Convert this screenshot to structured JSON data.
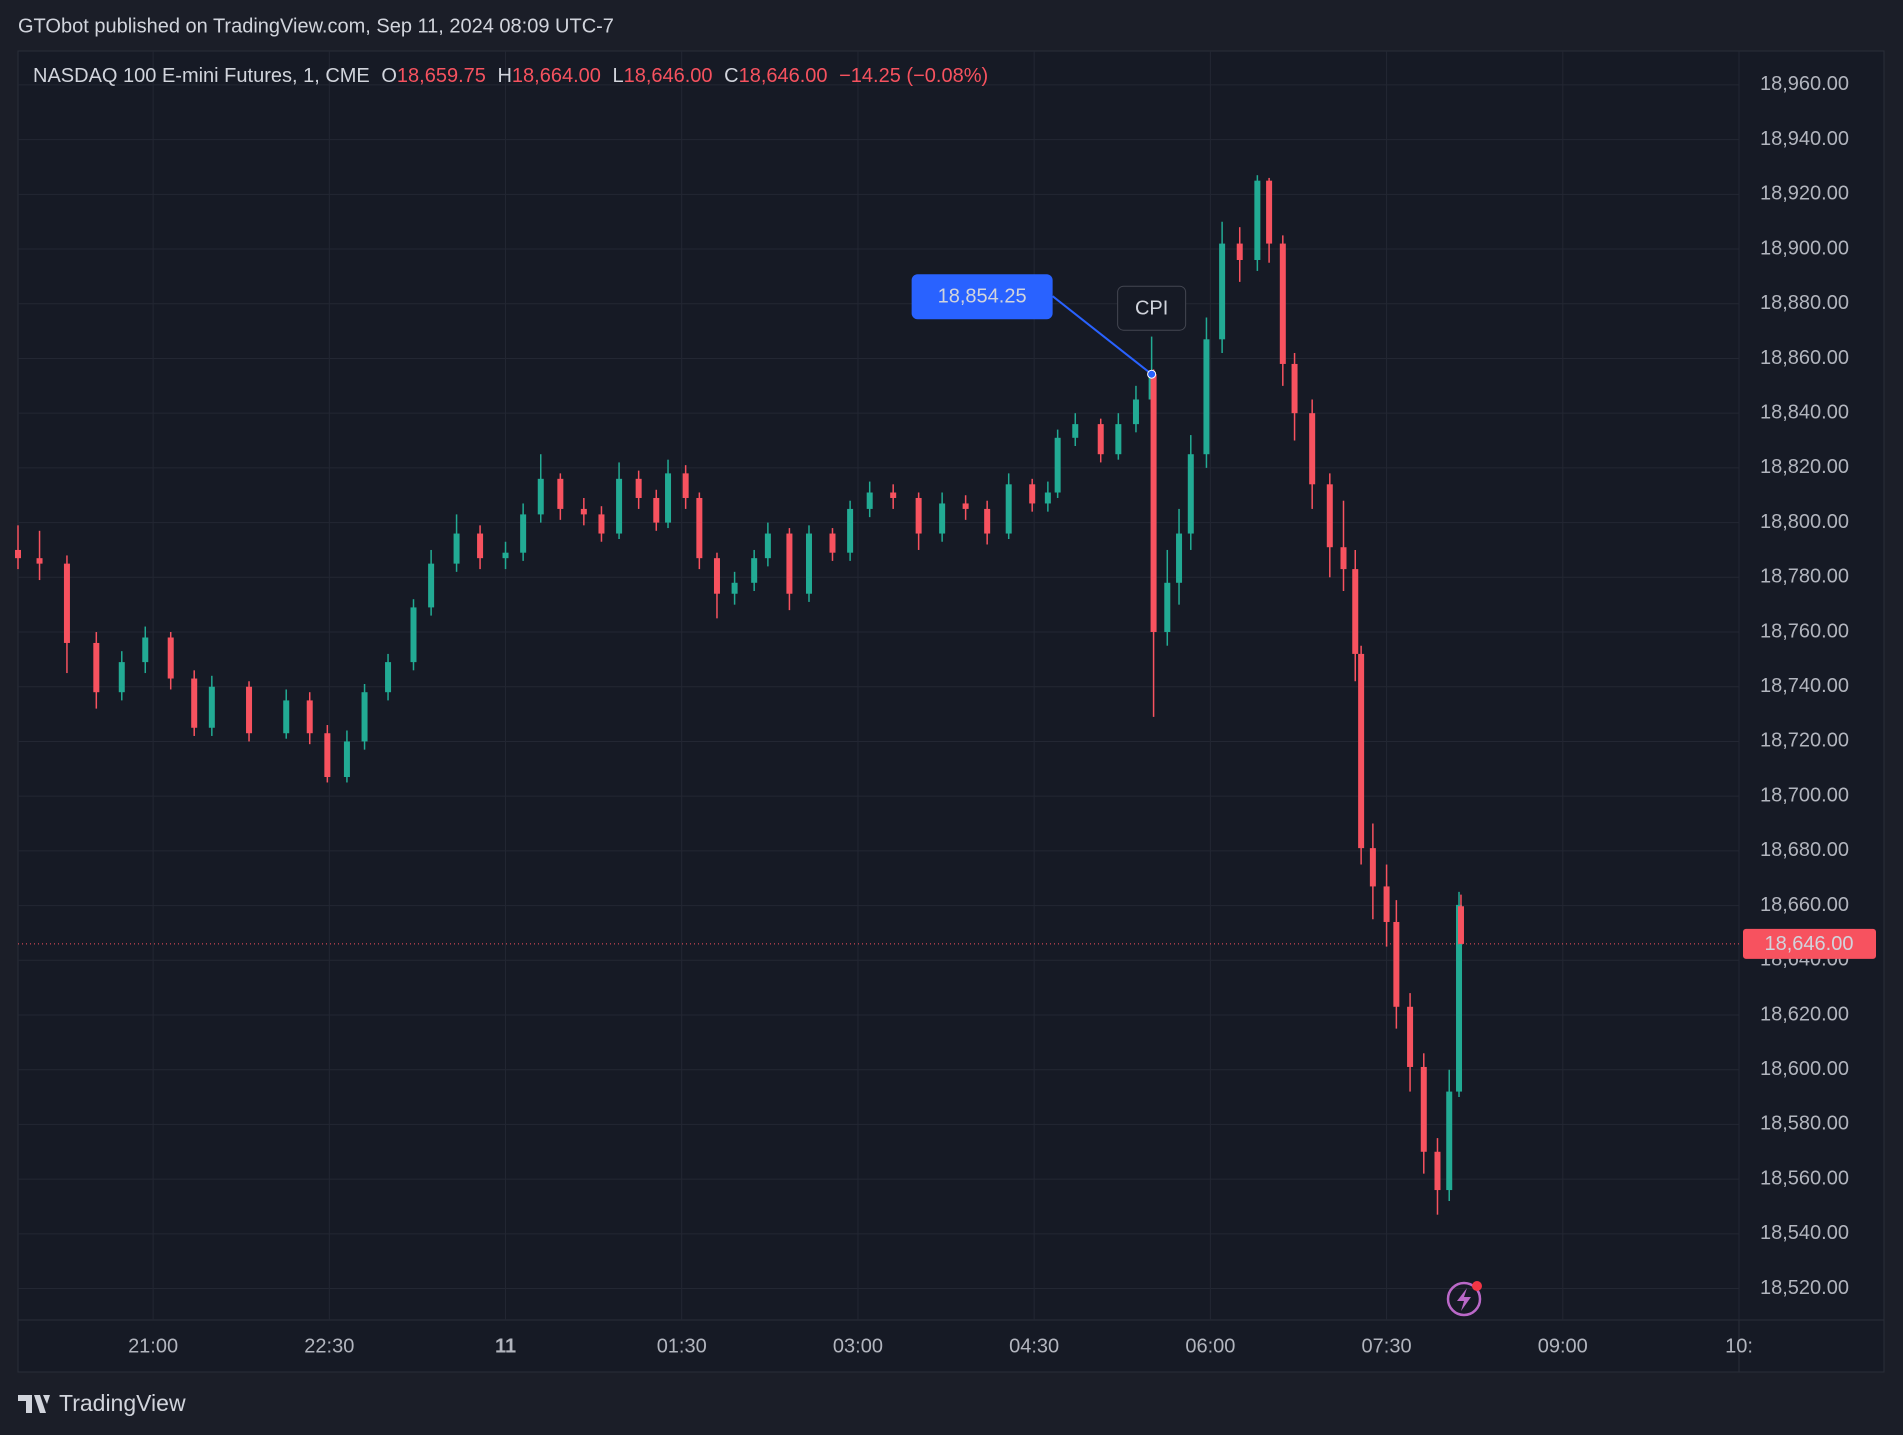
{
  "header": "GTObot published on TradingView.com, Sep 11, 2024 08:09 UTC-7",
  "footer": "TradingView",
  "chart_data": {
    "type": "candlestick",
    "symbol": "NASDAQ 100 E-mini Futures, 1, CME",
    "ohlc_legend": [
      {
        "key": "O",
        "value": 18659.75,
        "label": "18,659.75"
      },
      {
        "key": "H",
        "value": 18664,
        "label": "18,664.00"
      },
      {
        "key": "L",
        "value": 18646,
        "label": "18,646.00"
      },
      {
        "key": "C",
        "value": 18646,
        "label": "18,646.00"
      }
    ],
    "change": {
      "value": -14.25,
      "label": "−14.25"
    },
    "change_pct": {
      "value": -0.08,
      "label": "(−0.08%)"
    },
    "up_color": "#22ab94",
    "down_color": "#f7525f",
    "grid": true,
    "xlim": [
      "19:51",
      "10:30"
    ],
    "xticks": [
      "21:00",
      "22:30",
      {
        "value": "00:00",
        "label": "11"
      },
      "01:30",
      "03:00",
      "04:30",
      "06:00",
      "07:30",
      "09:00",
      {
        "value": "10:30",
        "label": "10:"
      }
    ],
    "ylim": [
      18508.5,
      18972.4
    ],
    "yticks": [
      {
        "value": 18520,
        "label": "18,520.00"
      },
      {
        "value": 18540,
        "label": "18,540.00"
      },
      {
        "value": 18560,
        "label": "18,560.00"
      },
      {
        "value": 18580,
        "label": "18,580.00"
      },
      {
        "value": 18600,
        "label": "18,600.00"
      },
      {
        "value": 18620,
        "label": "18,620.00"
      },
      {
        "value": 18640,
        "label": "18,640.00"
      },
      {
        "value": 18660,
        "label": "18,660.00"
      },
      {
        "value": 18680,
        "label": "18,680.00"
      },
      {
        "value": 18700,
        "label": "18,700.00"
      },
      {
        "value": 18720,
        "label": "18,720.00"
      },
      {
        "value": 18740,
        "label": "18,740.00"
      },
      {
        "value": 18760,
        "label": "18,760.00"
      },
      {
        "value": 18780,
        "label": "18,780.00"
      },
      {
        "value": 18800,
        "label": "18,800.00"
      },
      {
        "value": 18820,
        "label": "18,820.00"
      },
      {
        "value": 18840,
        "label": "18,840.00"
      },
      {
        "value": 18860,
        "label": "18,860.00"
      },
      {
        "value": 18880,
        "label": "18,880.00"
      },
      {
        "value": 18900,
        "label": "18,900.00"
      },
      {
        "value": 18920,
        "label": "18,920.00"
      },
      {
        "value": 18940,
        "label": "18,940.00"
      },
      {
        "value": 18960,
        "label": "18,960.00"
      }
    ],
    "x": [
      "19:51",
      "20:02",
      "20:16",
      "20:31",
      "20:44",
      "20:56",
      "21:09",
      "21:21",
      "21:30",
      "21:49",
      "22:08",
      "22:20",
      "22:29",
      "22:39",
      "22:48",
      "23:00",
      "23:13",
      "23:22",
      "23:35",
      "23:47",
      "00:00",
      "00:09",
      "00:18",
      "00:28",
      "00:40",
      "00:49",
      "00:58",
      "01:08",
      "01:17",
      "01:23",
      "01:32",
      "01:39",
      "01:48",
      "01:57",
      "02:07",
      "02:14",
      "02:25",
      "02:35",
      "02:47",
      "02:56",
      "03:06",
      "03:18",
      "03:31",
      "03:43",
      "03:55",
      "04:06",
      "04:17",
      "04:29",
      "04:37",
      "04:42",
      "04:51",
      "05:04",
      "05:13",
      "05:22",
      "05:30",
      "05:31",
      "05:38",
      "05:44",
      "05:50",
      "05:58",
      "06:06",
      "06:15",
      "06:24",
      "06:30",
      "06:37",
      "06:43",
      "06:52",
      "07:01",
      "07:08",
      "07:14",
      "07:17",
      "07:23",
      "07:30",
      "07:35",
      "07:42",
      "07:49",
      "07:56",
      "08:02",
      "08:07",
      "08:08"
    ],
    "open": [
      18790,
      18787,
      18785,
      18756,
      18738,
      18749,
      18758,
      18743,
      18725,
      18740,
      18723,
      18735,
      18723,
      18707,
      18720,
      18738,
      18749,
      18769,
      18785,
      18796,
      18787,
      18789,
      18803,
      18816,
      18805,
      18803,
      18796,
      18816,
      18809,
      18800,
      18818,
      18809,
      18787,
      18774,
      18778,
      18787,
      18796,
      18774,
      18796,
      18789,
      18805,
      18811,
      18809,
      18796,
      18807,
      18805,
      18796,
      18814,
      18807,
      18811,
      18831,
      18836,
      18825,
      18836,
      18845,
      18854.25,
      18760,
      18778,
      18796,
      18825,
      18867,
      18902,
      18896,
      18925,
      18902,
      18858,
      18840,
      18814,
      18791,
      18783,
      18752,
      18681,
      18667,
      18654,
      18623,
      18601,
      18570,
      18556,
      18592,
      18659.75
    ],
    "high": [
      18799,
      18797,
      18788,
      18760,
      18753,
      18762,
      18760,
      18746,
      18744,
      18742,
      18739,
      18738,
      18726,
      18724,
      18741,
      18752,
      18772,
      18790,
      18803,
      18799,
      18793,
      18807,
      18825,
      18818,
      18809,
      18806,
      18822,
      18819,
      18812,
      18823,
      18821,
      18811,
      18789,
      18782,
      18790,
      18800,
      18798,
      18799,
      18798,
      18808,
      18815,
      18814,
      18811,
      18811,
      18810,
      18808,
      18818,
      18816,
      18815,
      18834,
      18840,
      18838,
      18840,
      18850,
      18868,
      18856,
      18790,
      18805,
      18832,
      18875,
      18910,
      18908,
      18927,
      18926,
      18905,
      18862,
      18845,
      18818,
      18808,
      18790,
      18755,
      18690,
      18675,
      18662,
      18628,
      18606,
      18575,
      18600,
      18665,
      18664
    ],
    "low": [
      18783,
      18779,
      18745,
      18732,
      18735,
      18745,
      18739,
      18722,
      18722,
      18720,
      18721,
      18719,
      18705,
      18705,
      18717,
      18735,
      18746,
      18766,
      18782,
      18783,
      18783,
      18786,
      18800,
      18801,
      18799,
      18793,
      18794,
      18805,
      18797,
      18798,
      18805,
      18783,
      18765,
      18770,
      18775,
      18784,
      18768,
      18771,
      18786,
      18786,
      18802,
      18805,
      18790,
      18793,
      18801,
      18792,
      18794,
      18804,
      18804,
      18809,
      18828,
      18822,
      18823,
      18833,
      18842,
      18729,
      18755,
      18770,
      18790,
      18820,
      18862,
      18888,
      18892,
      18895,
      18850,
      18830,
      18805,
      18780,
      18775,
      18742,
      18675,
      18655,
      18645,
      18615,
      18592,
      18562,
      18547,
      18552,
      18590,
      18646
    ],
    "close": [
      18787,
      18785,
      18756,
      18738,
      18749,
      18758,
      18743,
      18725,
      18740,
      18723,
      18735,
      18723,
      18707,
      18720,
      18738,
      18749,
      18769,
      18785,
      18796,
      18787,
      18789,
      18803,
      18816,
      18805,
      18803,
      18796,
      18816,
      18809,
      18800,
      18818,
      18809,
      18787,
      18774,
      18778,
      18787,
      18796,
      18774,
      18796,
      18789,
      18805,
      18811,
      18809,
      18796,
      18807,
      18805,
      18796,
      18814,
      18807,
      18811,
      18831,
      18836,
      18825,
      18836,
      18845,
      18854.25,
      18760,
      18778,
      18796,
      18825,
      18867,
      18902,
      18896,
      18925,
      18902,
      18858,
      18840,
      18814,
      18791,
      18783,
      18752,
      18681,
      18667,
      18654,
      18623,
      18601,
      18570,
      18556,
      18592,
      18660.25,
      18646
    ],
    "callout": {
      "x": "05:30",
      "value": 18854.25,
      "label": "18,854.25"
    },
    "event": {
      "x": "05:30",
      "label": "CPI"
    },
    "last_price": {
      "value": 18646,
      "label": "18,646.00"
    }
  }
}
